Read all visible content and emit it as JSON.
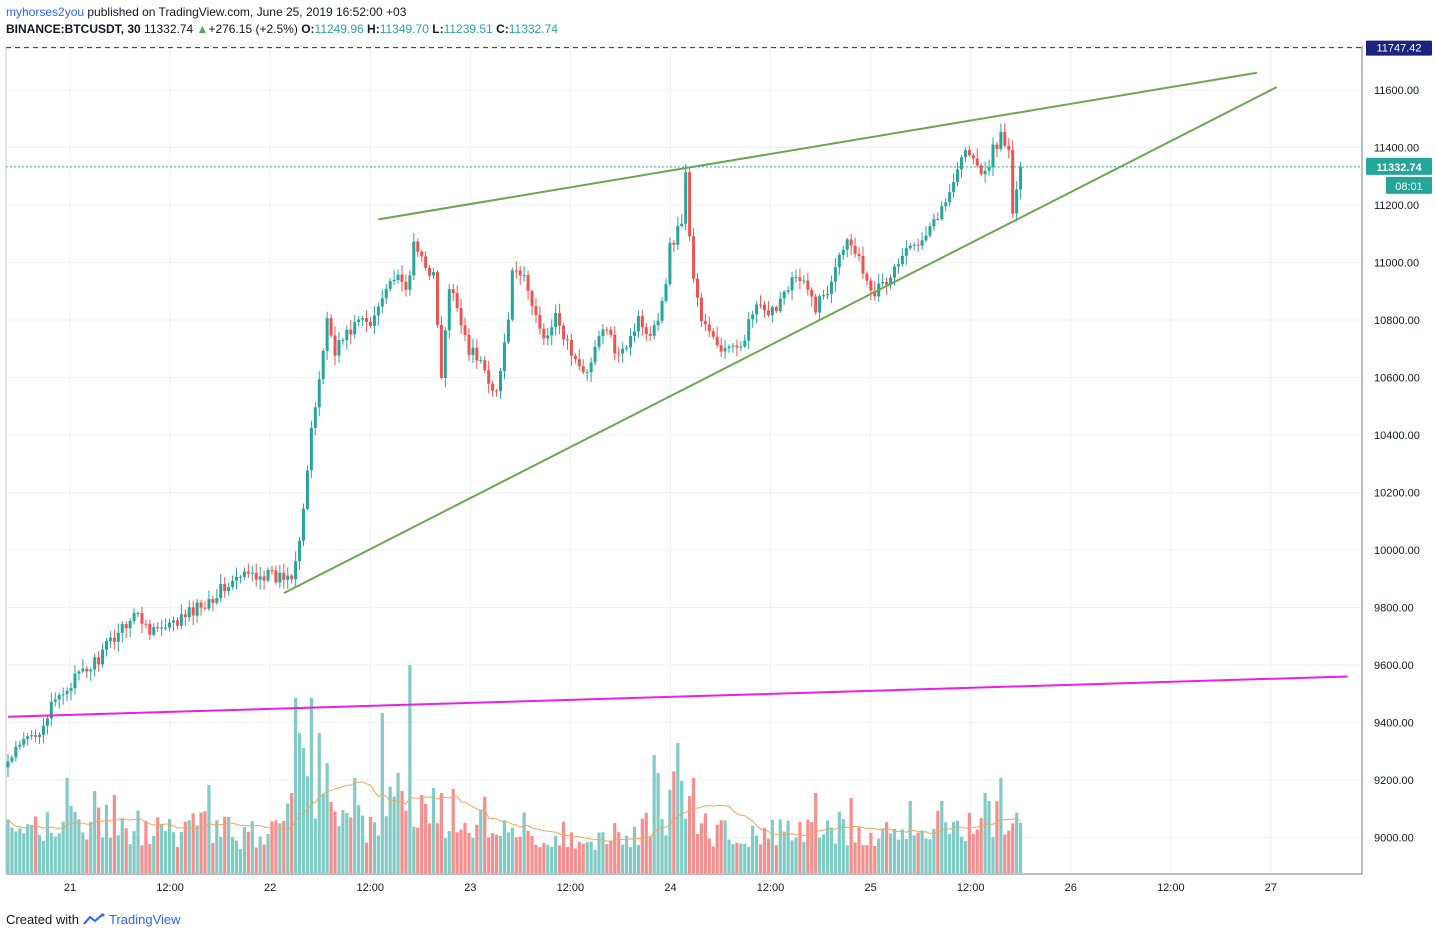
{
  "header": {
    "username": "myhorses2you",
    "published_text": " published on TradingView.com, June 25, 2019 16:52:00 +03",
    "symbol": "BINANCE:BTCUSDT, 30",
    "last_price": "11332.74",
    "change": "+276.15 (+2.5%)",
    "open_label": "O:",
    "open": "11249.96",
    "high_label": "H:",
    "high": "11349.70",
    "low_label": "L:",
    "low": "11239.51",
    "close_label": "C:",
    "close": "11332.74"
  },
  "footer": {
    "created_with": "Created with",
    "brand": "TradingView"
  },
  "colors": {
    "up": "#26a69a",
    "down": "#ef5350",
    "vol_up": "#80cbc4",
    "vol_down": "#f48f8f",
    "trendline": "#6aa84f",
    "support_line": "#e91ef0",
    "alert_line": "#1a237e",
    "ma": "#f5a25d"
  },
  "chart_data": {
    "type": "candlestick",
    "x_tick_labels": [
      "21",
      "12:00",
      "22",
      "12:00",
      "23",
      "12:00",
      "24",
      "12:00",
      "25",
      "12:00",
      "26",
      "12:00",
      "27"
    ],
    "y_tick_labels": [
      "11600.00",
      "11400.00",
      "11200.00",
      "11000.00",
      "10800.00",
      "10600.00",
      "10400.00",
      "10200.00",
      "10000.00",
      "9800.00",
      "9600.00",
      "9400.00",
      "9200.00",
      "9000.00"
    ],
    "ylim": [
      8890,
      11890
    ],
    "current_price_label": "11332.74",
    "countdown_label": "08:01",
    "alert_price_label": "11747.42",
    "price_anchors_bar_close": [
      [
        0,
        9260
      ],
      [
        4,
        9330
      ],
      [
        8,
        9380
      ],
      [
        12,
        9470
      ],
      [
        16,
        9540
      ],
      [
        20,
        9580
      ],
      [
        24,
        9640
      ],
      [
        28,
        9720
      ],
      [
        32,
        9780
      ],
      [
        36,
        9730
      ],
      [
        40,
        9720
      ],
      [
        44,
        9760
      ],
      [
        48,
        9800
      ],
      [
        52,
        9840
      ],
      [
        56,
        9880
      ],
      [
        60,
        9910
      ],
      [
        64,
        9920
      ],
      [
        68,
        9900
      ],
      [
        72,
        9920
      ],
      [
        74,
        10050
      ],
      [
        75,
        10150
      ],
      [
        77,
        10400
      ],
      [
        79,
        10600
      ],
      [
        81,
        10800
      ],
      [
        83,
        10700
      ],
      [
        86,
        10750
      ],
      [
        89,
        10800
      ],
      [
        92,
        10780
      ],
      [
        95,
        10900
      ],
      [
        98,
        10950
      ],
      [
        101,
        10900
      ],
      [
        103,
        11050
      ],
      [
        106,
        11000
      ],
      [
        108,
        10950
      ],
      [
        110,
        10600
      ],
      [
        112,
        10900
      ],
      [
        114,
        10850
      ],
      [
        117,
        10700
      ],
      [
        120,
        10650
      ],
      [
        122,
        10600
      ],
      [
        124,
        10550
      ],
      [
        126,
        10700
      ],
      [
        128,
        10950
      ],
      [
        131,
        10950
      ],
      [
        133,
        10850
      ],
      [
        136,
        10750
      ],
      [
        139,
        10800
      ],
      [
        142,
        10720
      ],
      [
        145,
        10620
      ],
      [
        148,
        10650
      ],
      [
        151,
        10780
      ],
      [
        154,
        10700
      ],
      [
        157,
        10720
      ],
      [
        160,
        10800
      ],
      [
        163,
        10760
      ],
      [
        166,
        10850
      ],
      [
        168,
        11050
      ],
      [
        171,
        11150
      ],
      [
        172,
        11300
      ],
      [
        173,
        11100
      ],
      [
        174,
        10950
      ],
      [
        176,
        10800
      ],
      [
        178,
        10750
      ],
      [
        181,
        10700
      ],
      [
        184,
        10690
      ],
      [
        187,
        10750
      ],
      [
        190,
        10850
      ],
      [
        193,
        10800
      ],
      [
        196,
        10880
      ],
      [
        199,
        10950
      ],
      [
        202,
        10920
      ],
      [
        205,
        10850
      ],
      [
        208,
        10900
      ],
      [
        211,
        11050
      ],
      [
        214,
        11080
      ],
      [
        217,
        10980
      ],
      [
        220,
        10900
      ],
      [
        223,
        10930
      ],
      [
        226,
        11000
      ],
      [
        229,
        11050
      ],
      [
        232,
        11100
      ],
      [
        235,
        11150
      ],
      [
        238,
        11200
      ],
      [
        240,
        11300
      ],
      [
        242,
        11370
      ],
      [
        244,
        11390
      ],
      [
        246,
        11320
      ],
      [
        248,
        11300
      ],
      [
        250,
        11400
      ],
      [
        252,
        11430
      ],
      [
        254,
        11380
      ],
      [
        255,
        11180
      ],
      [
        256,
        11250
      ],
      [
        257,
        11332.74
      ]
    ],
    "volume_anchors": [
      [
        0,
        40
      ],
      [
        20,
        55
      ],
      [
        40,
        40
      ],
      [
        50,
        45
      ],
      [
        60,
        38
      ],
      [
        70,
        40
      ],
      [
        73,
        120
      ],
      [
        75,
        100
      ],
      [
        77,
        80
      ],
      [
        80,
        60
      ],
      [
        84,
        45
      ],
      [
        88,
        50
      ],
      [
        92,
        45
      ],
      [
        96,
        65
      ],
      [
        100,
        70
      ],
      [
        104,
        55
      ],
      [
        108,
        70
      ],
      [
        112,
        50
      ],
      [
        116,
        55
      ],
      [
        120,
        60
      ],
      [
        124,
        55
      ],
      [
        128,
        48
      ],
      [
        134,
        40
      ],
      [
        140,
        38
      ],
      [
        150,
        36
      ],
      [
        160,
        42
      ],
      [
        166,
        45
      ],
      [
        170,
        90
      ],
      [
        173,
        75
      ],
      [
        176,
        50
      ],
      [
        180,
        40
      ],
      [
        190,
        38
      ],
      [
        200,
        40
      ],
      [
        210,
        45
      ],
      [
        220,
        42
      ],
      [
        230,
        40
      ],
      [
        240,
        48
      ],
      [
        250,
        55
      ],
      [
        257,
        42
      ]
    ],
    "volume_spikes": [
      [
        15,
        95
      ],
      [
        22,
        82
      ],
      [
        27,
        78
      ],
      [
        51,
        88
      ],
      [
        72,
        80
      ],
      [
        73,
        175
      ],
      [
        74,
        140
      ],
      [
        75,
        125
      ],
      [
        77,
        175
      ],
      [
        79,
        140
      ],
      [
        81,
        110
      ],
      [
        88,
        95
      ],
      [
        95,
        160
      ],
      [
        99,
        100
      ],
      [
        102,
        208
      ],
      [
        110,
        80
      ],
      [
        113,
        84
      ],
      [
        164,
        118
      ],
      [
        165,
        100
      ],
      [
        170,
        130
      ],
      [
        171,
        92
      ],
      [
        174,
        95
      ],
      [
        205,
        80
      ],
      [
        214,
        75
      ],
      [
        229,
        72
      ],
      [
        237,
        72
      ],
      [
        248,
        80
      ],
      [
        249,
        72
      ],
      [
        252,
        95
      ]
    ],
    "trendlines": [
      {
        "name": "upper-resistance",
        "from": [
          94,
          11150
        ],
        "to": [
          317,
          11660
        ]
      },
      {
        "name": "lower-support",
        "from": [
          70,
          9850
        ],
        "to": [
          322,
          11610
        ]
      },
      {
        "name": "long-term-support",
        "from": [
          0,
          9420
        ],
        "to": [
          340,
          9560
        ]
      }
    ],
    "current_price": 11332.74,
    "alert_price": 11747.42,
    "bar_count": 258,
    "x_axis_total_bars": 340
  }
}
